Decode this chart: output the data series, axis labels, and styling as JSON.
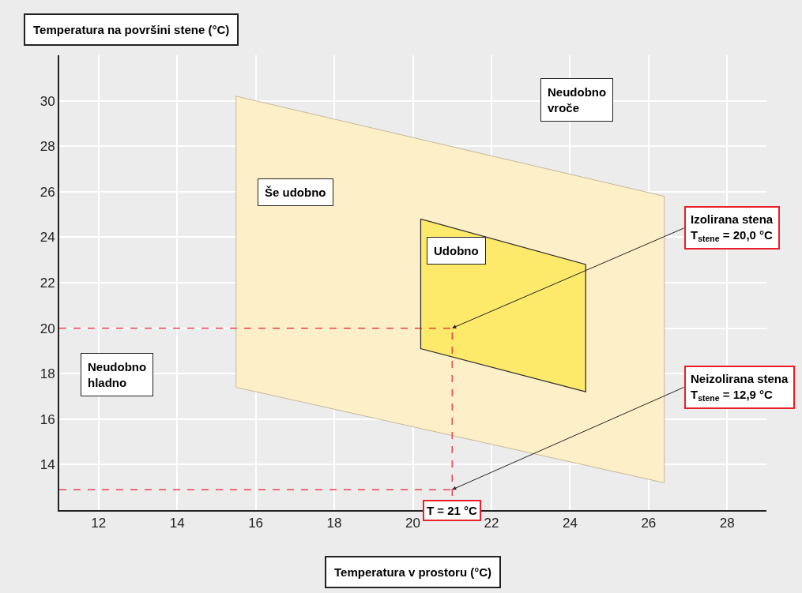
{
  "chart_data": {
    "type": "area",
    "xlabel": "Temperatura v prostoru (°C)",
    "ylabel": "Temperatura na površini stene (°C)",
    "xlim": [
      11,
      29
    ],
    "xticks": [
      12,
      14,
      16,
      18,
      20,
      22,
      24,
      26,
      28
    ],
    "ylim": [
      12,
      32
    ],
    "yticks": [
      14,
      16,
      18,
      20,
      22,
      24,
      26,
      28,
      30
    ],
    "grid": true,
    "series": [
      {
        "name": "Še udobno",
        "color": "#fdf0c8",
        "x": [
          15.5,
          26.4,
          26.4,
          15.5,
          15.5
        ],
        "values": [
          30.2,
          25.8,
          13.2,
          17.4,
          30.2
        ]
      },
      {
        "name": "Udobno",
        "color": "#fde96a",
        "x": [
          20.2,
          24.4,
          24.4,
          20.2,
          20.2
        ],
        "values": [
          24.8,
          22.8,
          17.2,
          19.1,
          24.8
        ]
      }
    ],
    "ref_lines": [
      {
        "axis": "y",
        "value": 20.0,
        "color": "#e8202a",
        "line_style": "dashed"
      },
      {
        "axis": "y",
        "value": 12.9,
        "color": "#e8202a",
        "line_style": "dashed"
      },
      {
        "axis": "x",
        "value": 21,
        "label": "T = 21 °C",
        "color": "#e8202a",
        "line_style": "dashed"
      }
    ],
    "annotations": [
      "Neudobno\nvroče",
      "Neudobno\nhladno",
      {
        "text": "Izolirana stena\nT$_{stene}$ = 20,0 °C",
        "x": 21,
        "y": 20.0
      },
      {
        "text": "Neizolirana stena\nT$_{stene}$ = 12,9 °C",
        "x": 21,
        "y": 12.9
      }
    ]
  }
}
